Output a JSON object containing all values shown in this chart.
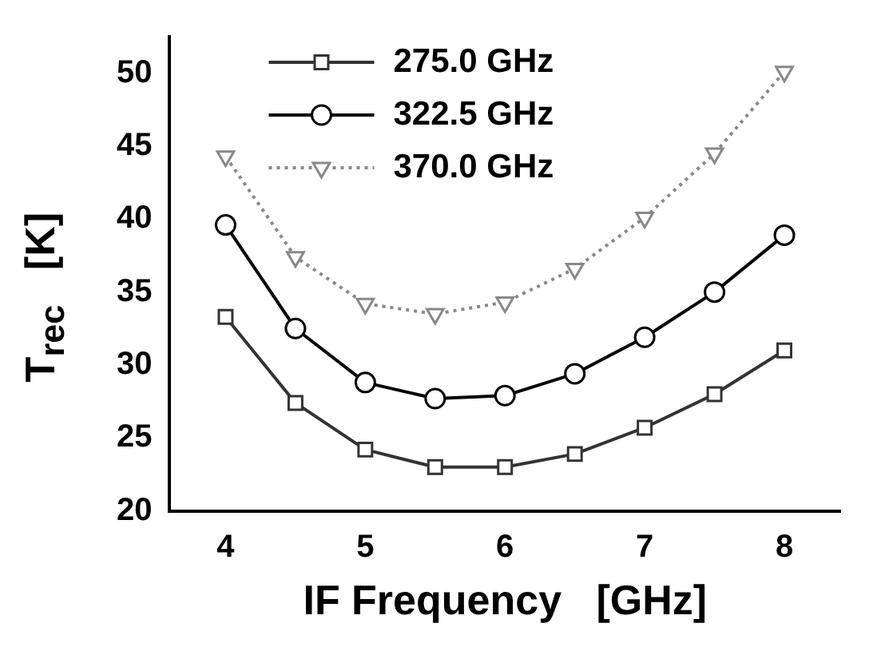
{
  "chart_data": {
    "type": "line",
    "xlabel": "IF Frequency   [GHz]",
    "ylabel": "T$_{rec}$   [K]",
    "x": [
      4,
      4.5,
      5,
      5.5,
      6,
      6.5,
      7,
      7.5,
      8
    ],
    "xlim": [
      3.6,
      8.4
    ],
    "xticks": [
      4,
      5,
      6,
      7,
      8
    ],
    "ylim": [
      20,
      52.5
    ],
    "yticks": [
      20,
      25,
      30,
      35,
      40,
      45,
      50
    ],
    "grid": false,
    "legend": "top left",
    "series": [
      {
        "name": "275.0 GHz",
        "color": "#333333",
        "values": [
          33.3,
          27.4,
          24.2,
          23.0,
          23.0,
          23.9,
          25.7,
          28.0,
          31.0
        ],
        "marker": "square",
        "line_style": "solid"
      },
      {
        "name": "322.5 GHz",
        "color": "#000000",
        "values": [
          39.6,
          32.5,
          28.8,
          27.7,
          27.9,
          29.4,
          31.9,
          35.0,
          38.9
        ],
        "marker": "circle",
        "line_style": "solid"
      },
      {
        "name": "370.0 GHz",
        "color": "#888888",
        "values": [
          44.3,
          37.4,
          34.2,
          33.5,
          34.3,
          36.6,
          40.1,
          44.5,
          50.1
        ],
        "marker": "triangle",
        "line_style": "dotted"
      }
    ]
  }
}
